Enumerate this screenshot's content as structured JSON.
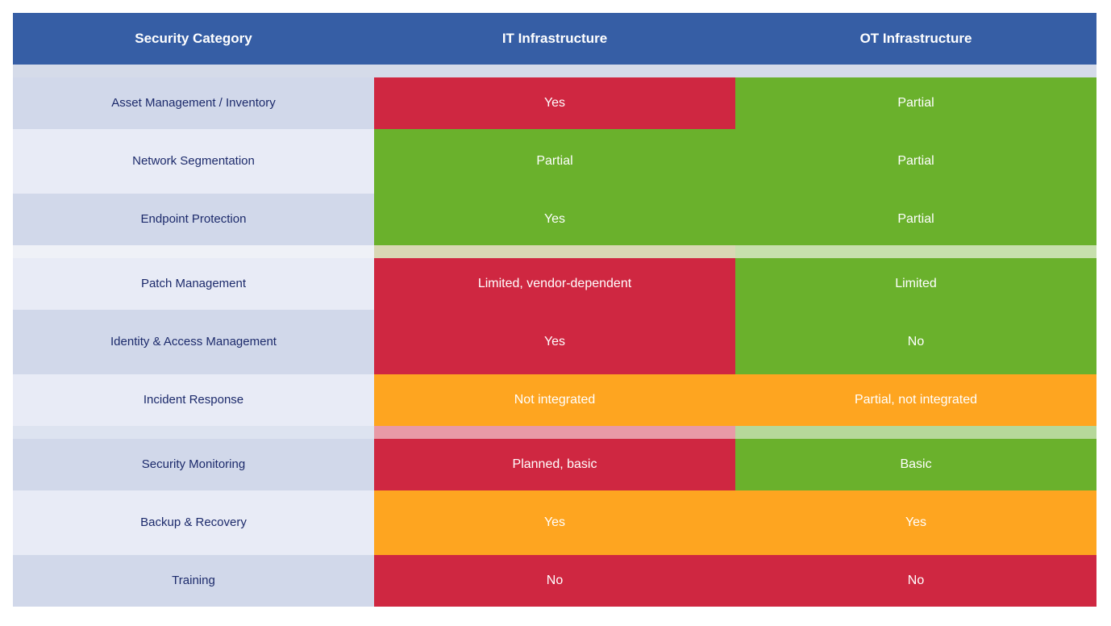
{
  "table": {
    "headers": [
      "Security Category",
      "IT Infrastructure",
      "OT Infrastructure"
    ],
    "colors": {
      "header": "#365ea5",
      "red": "#cf2741",
      "green": "#6ab12c",
      "orange": "#fea520",
      "label_text": "#1c2a6b"
    },
    "rows": [
      {
        "label": "Asset Management / Inventory",
        "it": "Yes",
        "ot": "Partial",
        "it_status": "red",
        "ot_status": "green"
      },
      {
        "label": "Network Segmentation",
        "it": "Partial",
        "ot": "Partial",
        "it_status": "green",
        "ot_status": "green"
      },
      {
        "label": "Endpoint Protection",
        "it": "Yes",
        "ot": "Partial",
        "it_status": "green",
        "ot_status": "green"
      },
      {
        "label": "Patch Management",
        "it": "Limited, vendor-dependent",
        "ot": "Limited",
        "it_status": "red",
        "ot_status": "green"
      },
      {
        "label": "Identity & Access Management",
        "it": "Yes",
        "ot": "No",
        "it_status": "red",
        "ot_status": "green"
      },
      {
        "label": "Incident Response",
        "it": "Not integrated",
        "ot": "Partial, not integrated",
        "it_status": "orange",
        "ot_status": "orange"
      },
      {
        "label": "Security Monitoring",
        "it": "Planned, basic",
        "ot": "Basic",
        "it_status": "red",
        "ot_status": "green"
      },
      {
        "label": "Backup & Recovery",
        "it": "Yes",
        "ot": "Yes",
        "it_status": "orange",
        "ot_status": "orange"
      },
      {
        "label": "Training",
        "it": "No",
        "ot": "No",
        "it_status": "red",
        "ot_status": "red"
      }
    ]
  }
}
